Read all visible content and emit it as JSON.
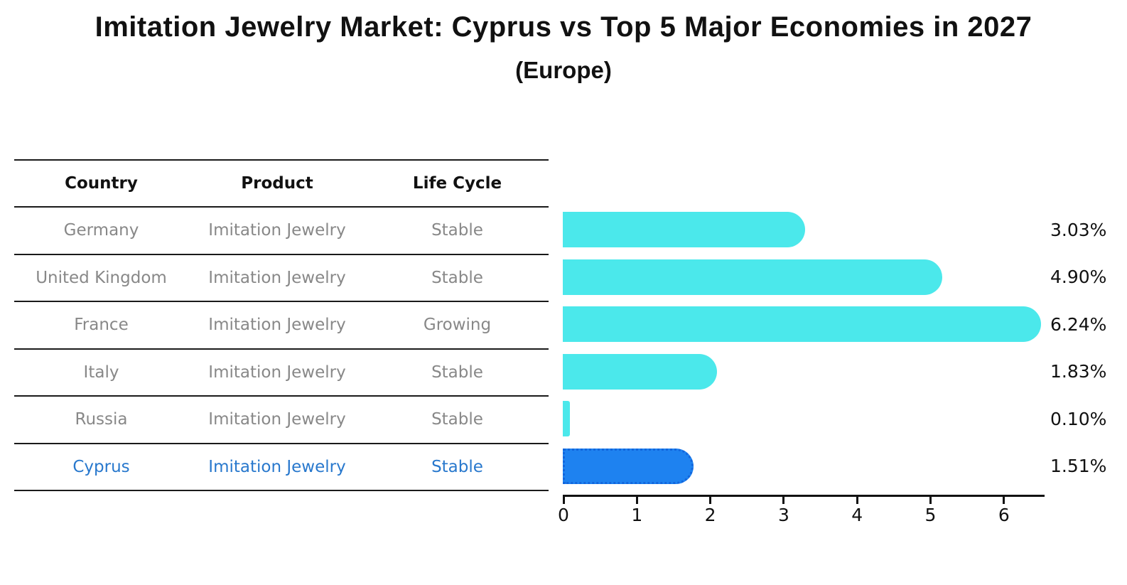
{
  "title": "Imitation Jewelry Market: Cyprus vs Top 5 Major Economies in 2027",
  "subtitle": "(Europe)",
  "table": {
    "headers": [
      "Country",
      "Product",
      "Life Cycle"
    ],
    "rows": [
      {
        "country": "Germany",
        "product": "Imitation Jewelry",
        "life_cycle": "Stable"
      },
      {
        "country": "United Kingdom",
        "product": "Imitation Jewelry",
        "life_cycle": "Stable"
      },
      {
        "country": "France",
        "product": "Imitation Jewelry",
        "life_cycle": "Growing"
      },
      {
        "country": "Italy",
        "product": "Imitation Jewelry",
        "life_cycle": "Stable"
      },
      {
        "country": "Russia",
        "product": "Imitation Jewelry",
        "life_cycle": "Stable"
      },
      {
        "country": "Cyprus",
        "product": "Imitation Jewelry",
        "life_cycle": "Stable"
      }
    ]
  },
  "chart_data": {
    "type": "bar",
    "orientation": "horizontal",
    "categories": [
      "Germany",
      "United Kingdom",
      "France",
      "Italy",
      "Russia",
      "Cyprus"
    ],
    "values": [
      3.03,
      4.9,
      6.24,
      1.83,
      0.1,
      1.51
    ],
    "value_labels": [
      "3.03%",
      "4.90%",
      "6.24%",
      "1.83%",
      "0.10%",
      "1.51%"
    ],
    "x_ticks": [
      "0",
      "1",
      "2",
      "3",
      "4",
      "5",
      "6"
    ],
    "xlim": [
      0,
      6.55
    ],
    "grid": false,
    "legend": false,
    "highlight_index": 5,
    "bar_color": "#4BE8EB",
    "highlight_color": "#1E82F0",
    "highlight_border": "#1266DD"
  },
  "colors": {
    "row_text": "#888888",
    "highlight_text": "#2878CD",
    "axis_color": "#111111"
  }
}
